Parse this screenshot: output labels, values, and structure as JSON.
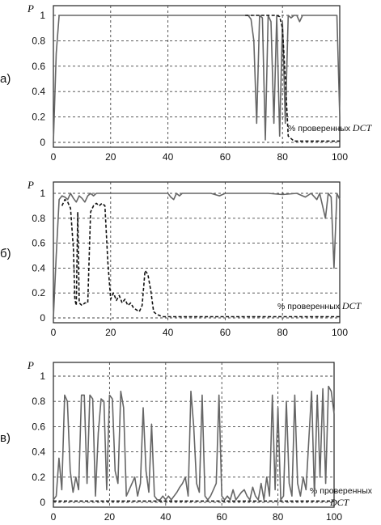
{
  "chart_data": [
    {
      "type": "line",
      "panel_label": "а)",
      "ylabel": "P",
      "annotation": "% проверенных",
      "annotation_italic": "DCT",
      "xlim": [
        0,
        100
      ],
      "ylim": [
        0,
        1.05
      ],
      "xticks": [
        "0",
        "20",
        "40",
        "60",
        "80",
        "100"
      ],
      "yticks": [
        "0",
        "0.2",
        "0.4",
        "0.6",
        "0.8",
        "1"
      ],
      "grid": true,
      "series": [
        {
          "style": "solid",
          "x": [
            0,
            1,
            2,
            3,
            10,
            20,
            30,
            40,
            50,
            60,
            68,
            69,
            70,
            71,
            72,
            73,
            74,
            75,
            76,
            77,
            78,
            79,
            80,
            81,
            82,
            83,
            84,
            85,
            86,
            87,
            88,
            90,
            95,
            99,
            100
          ],
          "y": [
            0,
            0.7,
            1,
            1,
            1,
            1,
            1,
            1,
            1,
            1,
            1,
            0.97,
            0.8,
            0.15,
            1,
            0.98,
            0.02,
            1,
            0.95,
            0.15,
            1,
            0.05,
            0.95,
            0.15,
            1,
            0.98,
            1,
            1,
            0.95,
            1,
            1,
            1,
            1,
            1,
            0.2
          ]
        },
        {
          "style": "dashed",
          "x": [
            67,
            70,
            75,
            78,
            79,
            80,
            81,
            82,
            84,
            90,
            100
          ],
          "y": [
            1,
            1,
            1,
            1,
            0.99,
            0.9,
            0.5,
            0.05,
            0.01,
            0.01,
            0.01
          ]
        }
      ]
    },
    {
      "type": "line",
      "panel_label": "б)",
      "ylabel": "P",
      "annotation": "% проверенных",
      "annotation_italic": "DCT",
      "xlim": [
        0,
        100
      ],
      "ylim": [
        0,
        1.05
      ],
      "xticks": [
        "0",
        "20",
        "40",
        "60",
        "80",
        "100"
      ],
      "yticks": [
        "0",
        "0.2",
        "0.4",
        "0.6",
        "0.8",
        "1"
      ],
      "grid": true,
      "series": [
        {
          "style": "solid",
          "x": [
            0,
            1,
            2,
            3,
            4,
            5,
            6,
            7,
            8,
            9,
            10,
            11,
            12,
            13,
            14,
            15,
            20,
            30,
            40,
            41,
            42,
            43,
            44,
            45,
            50,
            55,
            58,
            60,
            65,
            70,
            75,
            80,
            85,
            88,
            90,
            92,
            93,
            95,
            96,
            97,
            98,
            99,
            100
          ],
          "y": [
            0,
            0.5,
            0.95,
            0.98,
            0.97,
            0.95,
            1,
            0.96,
            0.93,
            0.98,
            0.96,
            0.93,
            0.98,
            1,
            0.98,
            1,
            1,
            1,
            1,
            0.97,
            0.95,
            1,
            0.98,
            1,
            1,
            1,
            0.98,
            1,
            1,
            1,
            1,
            0.99,
            1,
            0.97,
            1,
            0.95,
            1,
            0.8,
            1,
            0.97,
            0.4,
            1,
            0.95
          ]
        },
        {
          "style": "dashed",
          "x": [
            3,
            4,
            5,
            6,
            7,
            7.5,
            8,
            8.5,
            9,
            10,
            11,
            12,
            12.5,
            13,
            14,
            15,
            16,
            17,
            18,
            19,
            20,
            21,
            22,
            23,
            24,
            25,
            26,
            27,
            28,
            30,
            31,
            32,
            33,
            34,
            35,
            36,
            37,
            38,
            40,
            45,
            60,
            80,
            100
          ],
          "y": [
            0.9,
            0.95,
            0.93,
            0.88,
            0.55,
            0.15,
            0.1,
            0.85,
            0.12,
            0.1,
            0.12,
            0.12,
            0.5,
            0.85,
            0.9,
            0.92,
            0.9,
            0.92,
            0.9,
            0.45,
            0.15,
            0.2,
            0.14,
            0.18,
            0.12,
            0.15,
            0.1,
            0.12,
            0.08,
            0.05,
            0.1,
            0.38,
            0.35,
            0.22,
            0.05,
            0.03,
            0.02,
            0.01,
            0.01,
            0.01,
            0.01,
            0.01,
            0.01
          ]
        }
      ]
    },
    {
      "type": "line",
      "panel_label": "в)",
      "ylabel": "P",
      "annotation": "% проверенных",
      "annotation_italic": "DCT",
      "xlim": [
        0,
        100
      ],
      "ylim": [
        0,
        1.05
      ],
      "xticks": [
        "0",
        "20",
        "40",
        "60",
        "80",
        "100"
      ],
      "yticks": [
        "0",
        "0.2",
        "0.4",
        "0.6",
        "0.8",
        "1"
      ],
      "grid": true,
      "series": [
        {
          "style": "solid",
          "x": [
            0,
            1,
            2,
            3,
            4,
            5,
            6,
            7,
            8,
            9,
            10,
            11,
            12,
            13,
            14,
            15,
            16,
            17,
            18,
            19,
            20,
            21,
            22,
            23,
            24,
            25,
            26,
            27,
            28,
            29,
            30,
            31,
            32,
            33,
            34,
            35,
            36,
            37,
            38,
            39,
            40,
            41,
            42,
            43,
            44,
            45,
            46,
            47,
            48,
            49,
            50,
            51,
            52,
            53,
            54,
            55,
            56,
            57,
            58,
            59,
            60,
            61,
            62,
            63,
            64,
            65,
            66,
            67,
            68,
            69,
            70,
            71,
            72,
            73,
            74,
            75,
            76,
            77,
            78,
            79,
            80,
            81,
            82,
            83,
            84,
            85,
            86,
            87,
            88,
            89,
            90,
            91,
            92,
            93,
            94,
            95,
            96,
            97,
            98,
            99,
            100
          ],
          "y": [
            0.02,
            0.05,
            0.35,
            0.1,
            0.85,
            0.8,
            0.25,
            0.08,
            0.2,
            0.1,
            0.85,
            0.85,
            0.15,
            0.85,
            0.82,
            0.05,
            0.55,
            0.82,
            0.8,
            0.1,
            0.85,
            0.82,
            0.25,
            0.15,
            0.88,
            0.75,
            0.05,
            0.1,
            0.15,
            0.2,
            0.05,
            0.15,
            0.75,
            0.25,
            0.08,
            0.62,
            0.05,
            0.02,
            0.02,
            0.05,
            0.02,
            0.05,
            0.02,
            0.05,
            0.08,
            0.12,
            0.15,
            0.2,
            0.05,
            0.88,
            0.6,
            0.15,
            0.08,
            0.85,
            0.05,
            0.02,
            0.05,
            0.1,
            0.15,
            0.85,
            0.05,
            0.02,
            0.05,
            0.02,
            0.1,
            0.02,
            0.05,
            0.08,
            0.1,
            0.05,
            0.02,
            0.12,
            0.05,
            0.02,
            0.15,
            0.02,
            0.2,
            0.05,
            0.85,
            0.1,
            0.75,
            0.02,
            0.05,
            0.8,
            0.15,
            0.05,
            0.85,
            0.15,
            0.05,
            0.2,
            0.1,
            0.5,
            0.88,
            0.05,
            0.85,
            0.2,
            0.9,
            0.15,
            0.92,
            0.88,
            0.7
          ]
        },
        {
          "style": "dashed",
          "x": [
            0,
            100
          ],
          "y": [
            0.01,
            0.01
          ]
        }
      ]
    }
  ]
}
